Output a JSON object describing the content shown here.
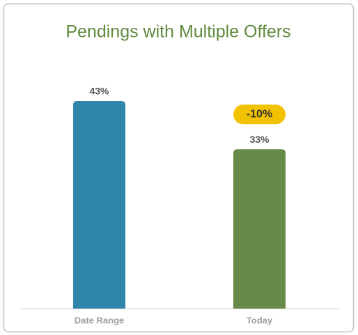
{
  "chart_data": {
    "type": "bar",
    "title": "Pendings with Multiple Offers",
    "categories": [
      "Date Range",
      "Today"
    ],
    "values": [
      43,
      33
    ],
    "value_labels": [
      "43%",
      "33%"
    ],
    "colors": [
      "#2e86ab",
      "#688a48"
    ],
    "annotation": "-10%"
  }
}
